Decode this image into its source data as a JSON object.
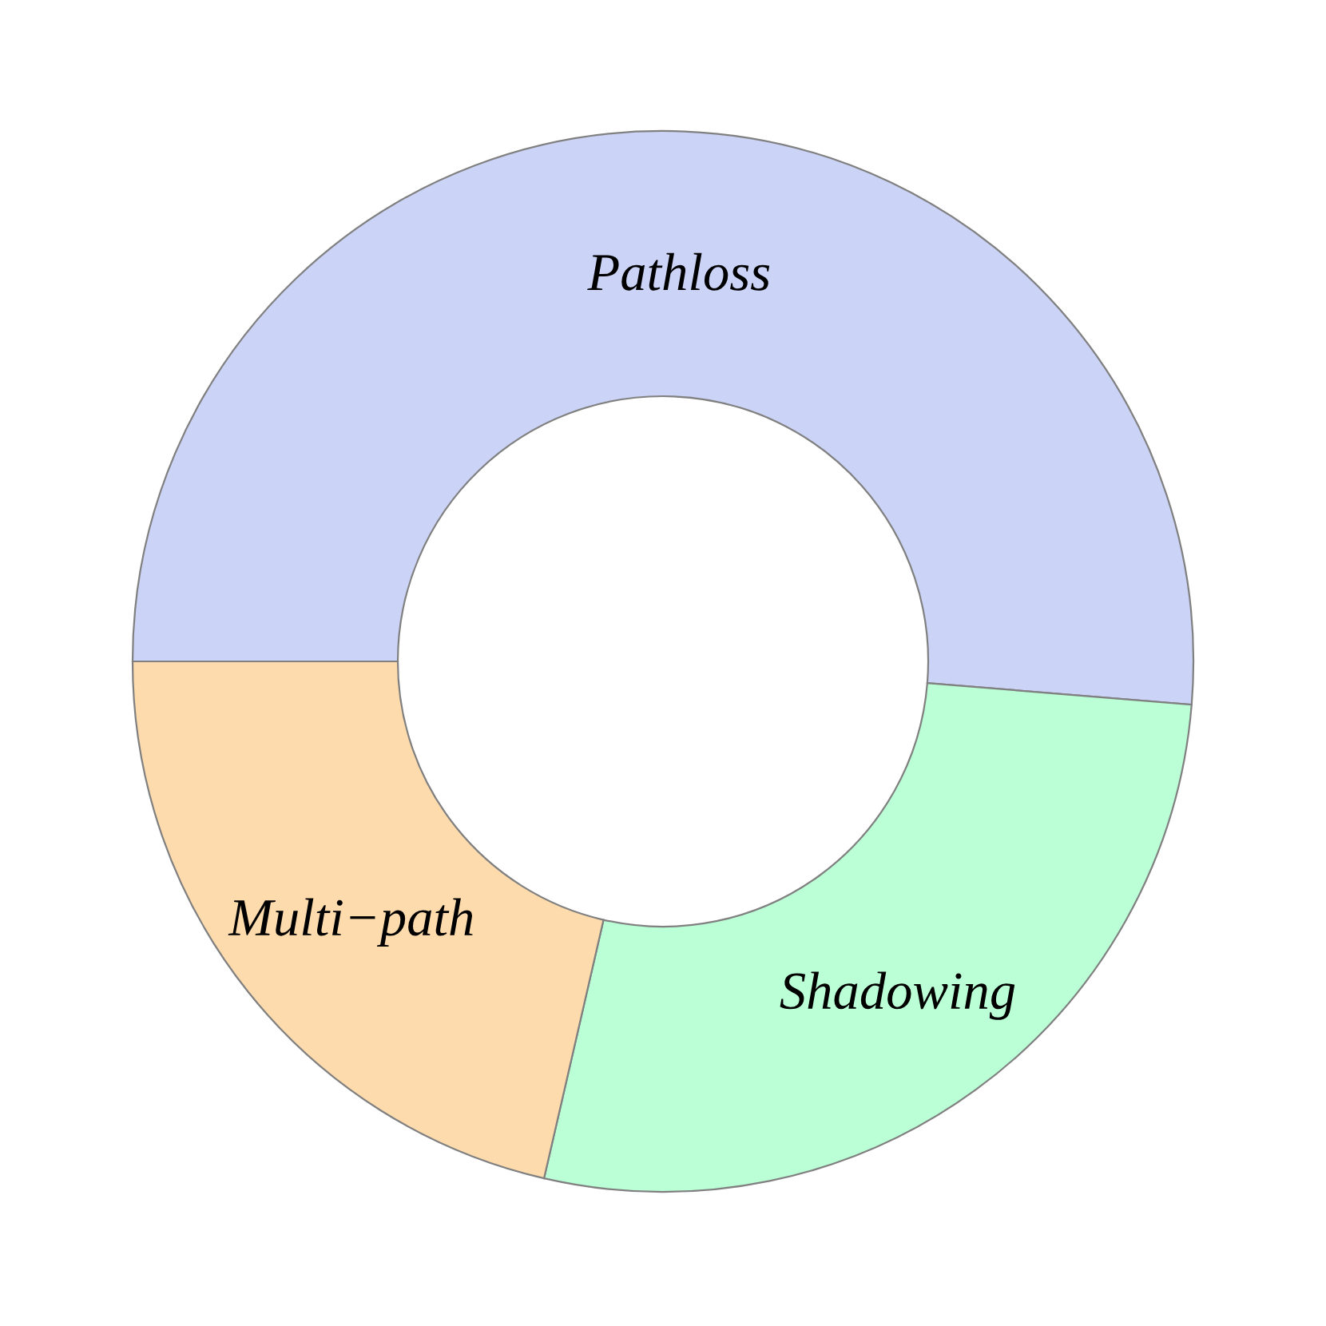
{
  "chart_data": {
    "type": "donut",
    "categories": [
      "Pathloss",
      "Shadowing",
      "Multi−path"
    ],
    "values": [
      51.3,
      27.3,
      21.4
    ],
    "colors": [
      "#cbd3f6",
      "#bbffd6",
      "#fedbac"
    ]
  }
}
